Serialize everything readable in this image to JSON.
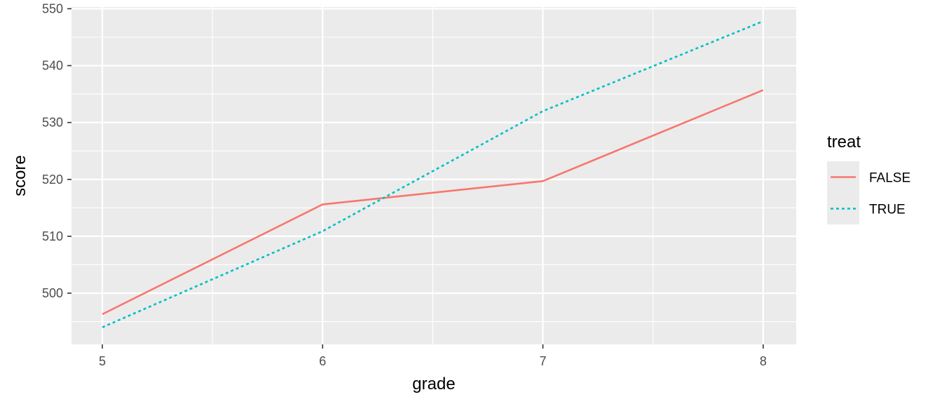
{
  "chart_data": {
    "type": "line",
    "xlabel": "grade",
    "ylabel": "score",
    "x": [
      5,
      6,
      7,
      8
    ],
    "xlim": [
      4.86,
      8.15
    ],
    "ylim": [
      491,
      550.3
    ],
    "xticks": [
      5,
      6,
      7,
      8
    ],
    "yticks": [
      500,
      510,
      520,
      530,
      540,
      550
    ],
    "grid": true,
    "legend": {
      "title": "treat",
      "placement": "right"
    },
    "series": [
      {
        "name": "FALSE",
        "values": [
          496.3,
          515.6,
          519.7,
          535.7
        ],
        "color": "#F8766D",
        "linetype": "solid"
      },
      {
        "name": "TRUE",
        "values": [
          494.0,
          510.9,
          532.0,
          547.8
        ],
        "color": "#00BFC4",
        "linetype": "dotted"
      }
    ]
  }
}
